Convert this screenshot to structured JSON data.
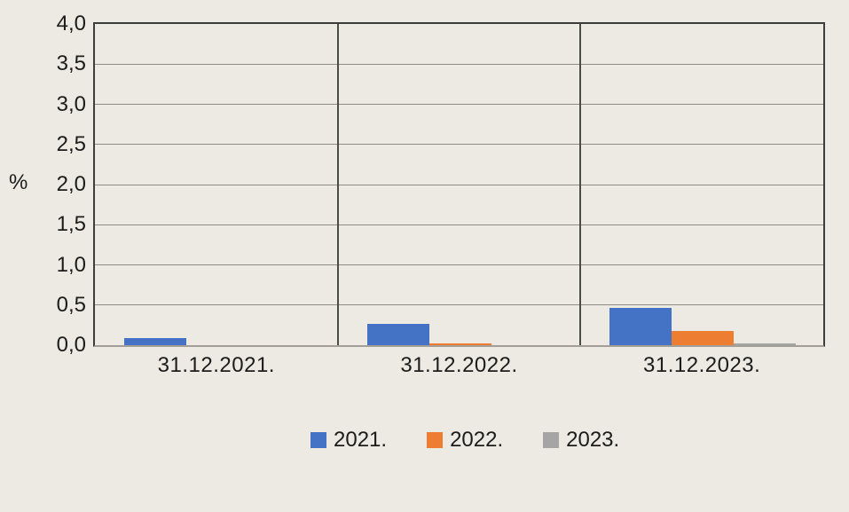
{
  "chart_data": {
    "type": "bar",
    "ylabel": "%",
    "categories": [
      "31.12.2021.",
      "31.12.2022.",
      "31.12.2023."
    ],
    "series": [
      {
        "name": "2021.",
        "color": "#4472C4",
        "values": [
          0.09,
          0.27,
          0.46
        ]
      },
      {
        "name": "2022.",
        "color": "#ED7D31",
        "values": [
          0,
          0.02,
          0.18
        ]
      },
      {
        "name": "2023.",
        "color": "#A5A5A5",
        "values": [
          0,
          0,
          0.02
        ]
      }
    ],
    "ylim": [
      0,
      4
    ],
    "yticks": [
      {
        "label": "4,0",
        "value": 4.0
      },
      {
        "label": "3,5",
        "value": 3.5
      },
      {
        "label": "3,0",
        "value": 3.0
      },
      {
        "label": "2,5",
        "value": 2.5
      },
      {
        "label": "2,0",
        "value": 2.0
      },
      {
        "label": "1,5",
        "value": 1.5
      },
      {
        "label": "1,0",
        "value": 1.0
      },
      {
        "label": "0,5",
        "value": 0.5
      },
      {
        "label": "0,0",
        "value": 0.0
      }
    ],
    "grid": true,
    "legend_position": "bottom",
    "colors": {
      "background": "#EDEAE3",
      "plot_border": "#3D3D3B",
      "gridline": "#8F8B84",
      "axis_line": "#A39F97",
      "text": "#1C1C1A"
    }
  }
}
